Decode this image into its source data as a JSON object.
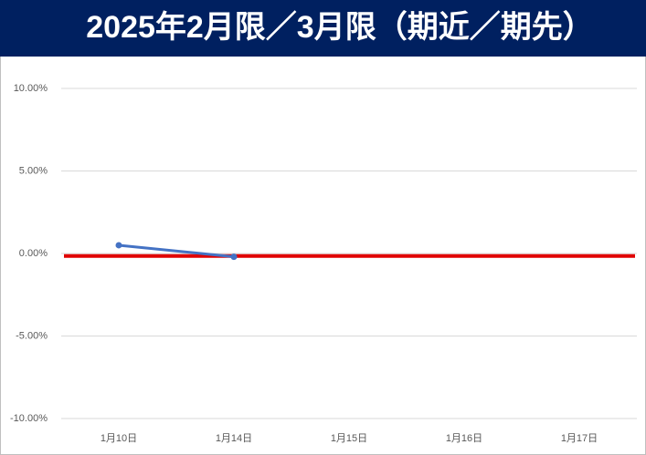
{
  "chart_data": {
    "type": "line",
    "title": "2025年2月限／3月限（期近／期先）",
    "categories": [
      "1月10日",
      "1月14日",
      "1月15日",
      "1月16日",
      "1月17日"
    ],
    "series": [
      {
        "color": "#4472c4",
        "values": [
          0.5,
          -0.2,
          null,
          null,
          null
        ]
      }
    ],
    "reference_line": {
      "value": -0.15,
      "color": "#e00000"
    },
    "ylim": [
      -10,
      10
    ],
    "yticks": [
      {
        "value": -10,
        "label": "-10.00%"
      },
      {
        "value": -5,
        "label": "-5.00%"
      },
      {
        "value": 0,
        "label": "0.00%"
      },
      {
        "value": 5,
        "label": "5.00%"
      },
      {
        "value": 10,
        "label": "10.00%"
      }
    ],
    "grid": true
  }
}
